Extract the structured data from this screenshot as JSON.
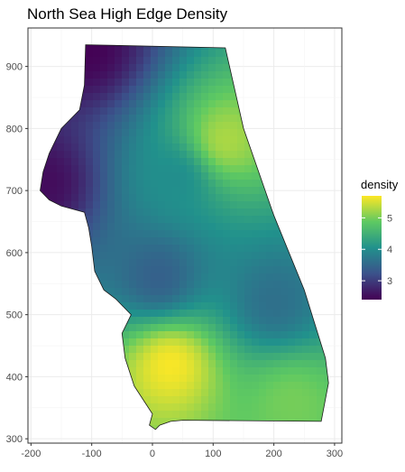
{
  "chart_data": {
    "type": "heatmap",
    "title": "North Sea High Edge Density",
    "xlabel": "",
    "ylabel": "",
    "xlim": [
      -205,
      312
    ],
    "ylim": [
      293,
      962
    ],
    "x_ticks": [
      -200,
      -100,
      0,
      100,
      200,
      300
    ],
    "y_ticks": [
      300,
      400,
      500,
      600,
      700,
      800,
      900
    ],
    "grid": true,
    "legend": {
      "title": "density",
      "placement": "right",
      "range": [
        2.4,
        5.7
      ],
      "ticks": [
        3,
        4,
        5
      ]
    },
    "colors": {
      "low": "#440154",
      "high": "#fde725",
      "panel_border": "#333333",
      "grid": "#ebebeb"
    },
    "region_outline": [
      [
        -110,
        935
      ],
      [
        120,
        930
      ],
      [
        150,
        800
      ],
      [
        200,
        660
      ],
      [
        250,
        540
      ],
      [
        285,
        430
      ],
      [
        290,
        390
      ],
      [
        278,
        328
      ],
      [
        50,
        330
      ],
      [
        30,
        328
      ],
      [
        12,
        322
      ],
      [
        5,
        315
      ],
      [
        -5,
        322
      ],
      [
        0,
        340
      ],
      [
        -10,
        355
      ],
      [
        -30,
        385
      ],
      [
        -45,
        430
      ],
      [
        -50,
        470
      ],
      [
        -35,
        500
      ],
      [
        -60,
        525
      ],
      [
        -80,
        540
      ],
      [
        -95,
        570
      ],
      [
        -100,
        610
      ],
      [
        -105,
        640
      ],
      [
        -112,
        665
      ],
      [
        -150,
        675
      ],
      [
        -170,
        685
      ],
      [
        -185,
        700
      ],
      [
        -180,
        730
      ],
      [
        -170,
        760
      ],
      [
        -150,
        800
      ],
      [
        -120,
        830
      ],
      [
        -112,
        870
      ],
      [
        -110,
        935
      ]
    ],
    "density_peaks": [
      {
        "x": -110,
        "y": 930,
        "value": 2.4
      },
      {
        "x": -180,
        "y": 710,
        "value": 2.5
      },
      {
        "x": 30,
        "y": 420,
        "value": 5.7
      },
      {
        "x": 120,
        "y": 780,
        "value": 5.3
      },
      {
        "x": 230,
        "y": 360,
        "value": 5.0
      },
      {
        "x": 40,
        "y": 720,
        "value": 4.0
      },
      {
        "x": 10,
        "y": 560,
        "value": 3.4
      },
      {
        "x": 200,
        "y": 520,
        "value": 3.6
      }
    ]
  }
}
